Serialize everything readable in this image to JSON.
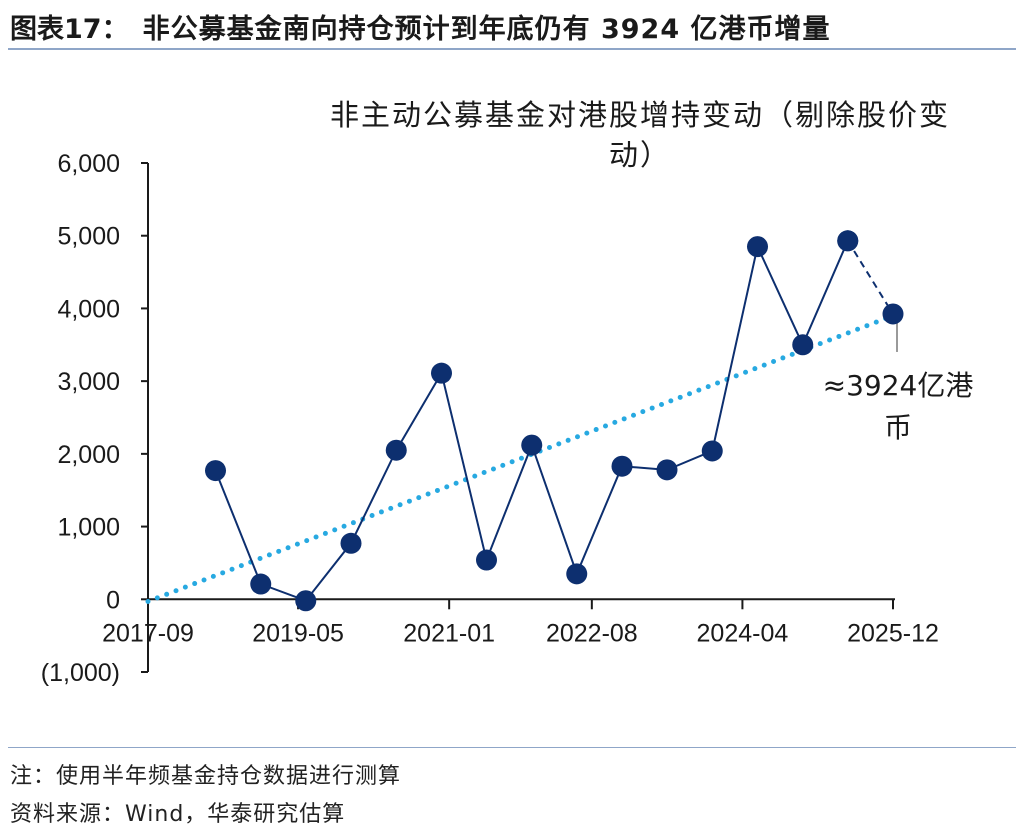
{
  "figure": {
    "label": "图表17：",
    "title": "非公募基金南向持仓预计到年底仍有 3924 亿港币增量"
  },
  "footer": {
    "note": "注：使用半年频基金持仓数据进行测算",
    "source": "资料来源：Wind，华泰研究估算"
  },
  "chart_data": {
    "type": "line",
    "title_lines": [
      "非主动公募基金对港股增持变动（剔除股价变",
      "动）"
    ],
    "xlabel": "",
    "ylabel": "",
    "ylim": [
      -1000,
      6000
    ],
    "yticks": [
      -1000,
      0,
      1000,
      2000,
      3000,
      4000,
      5000,
      6000
    ],
    "ytick_labels": [
      "(1,000)",
      "0",
      "1,000",
      "2,000",
      "3,000",
      "4,000",
      "5,000",
      "6,000"
    ],
    "xticks": [
      "2017-09",
      "2019-05",
      "2021-01",
      "2022-08",
      "2024-04",
      "2025-12"
    ],
    "x": [
      "2018-06",
      "2018-12",
      "2019-06",
      "2019-12",
      "2020-06",
      "2020-12",
      "2021-06",
      "2021-12",
      "2022-06",
      "2022-12",
      "2023-06",
      "2023-12",
      "2024-06",
      "2024-12",
      "2025-06",
      "2025-12"
    ],
    "series": [
      {
        "values": [
          1770,
          210,
          -20,
          770,
          2050,
          3110,
          540,
          2120,
          350,
          1830,
          1780,
          2040,
          4850,
          3500,
          4930,
          null
        ],
        "color": "#0d2f6f",
        "style": "solid"
      },
      {
        "values": [
          null,
          null,
          null,
          null,
          null,
          null,
          null,
          null,
          null,
          null,
          null,
          null,
          null,
          null,
          4930,
          3924
        ],
        "color": "#0d2f6f",
        "style": "dashed"
      }
    ],
    "trendline": {
      "from": [
        "2017-09",
        -30
      ],
      "to": [
        "2025-12",
        3900
      ],
      "color": "#27a9e1",
      "style": "dotted"
    },
    "annotation": {
      "lines": [
        "≈3924亿港",
        "币"
      ],
      "x": "2025-12",
      "y": 3924
    },
    "grid": false
  }
}
